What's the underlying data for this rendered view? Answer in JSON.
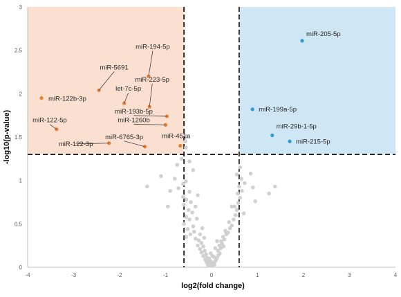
{
  "chart_data": {
    "type": "scatter",
    "title": "",
    "xlabel": "log2(fold change)",
    "ylabel": "-log10(p-value)",
    "xlim": [
      -4,
      4
    ],
    "ylim": [
      0,
      3
    ],
    "x_ticks": [
      "-4",
      "-3",
      "-2",
      "-1",
      "0",
      "1",
      "2",
      "3",
      "4"
    ],
    "y_ticks": [
      "0",
      "0.5",
      "1",
      "1.5",
      "2",
      "2.5",
      "3"
    ],
    "thresholds": {
      "fold_change_low": -0.6,
      "fold_change_high": 0.6,
      "p_value": 1.3
    },
    "colors": {
      "down_region": "#fbe0d1",
      "up_region": "#cfe7f5",
      "down_points": "#ed7d31",
      "up_points": "#2e9bd6",
      "ns_points": "#d0d0d0",
      "threshold_lines": "#000000",
      "axis": "#bfbfbf"
    },
    "series": [
      {
        "group": "down",
        "points": [
          {
            "label": "miR-122b-3p",
            "x": -3.7,
            "y": 1.95
          },
          {
            "label": "miR-5691",
            "x": -2.45,
            "y": 2.04
          },
          {
            "label": "miR-194-5p",
            "x": -1.37,
            "y": 2.2
          },
          {
            "label": "let-7c-5p",
            "x": -1.9,
            "y": 1.89
          },
          {
            "label": "miR-223-5p",
            "x": -1.35,
            "y": 1.85
          },
          {
            "label": "miR-193b-5p",
            "x": -0.97,
            "y": 1.74
          },
          {
            "label": "miR-1260b",
            "x": -1.0,
            "y": 1.64
          },
          {
            "label": "miR-122-5p",
            "x": -3.37,
            "y": 1.59
          },
          {
            "label": "miR-6765-3p",
            "x": -1.45,
            "y": 1.39
          },
          {
            "label": "miR-122-3p",
            "x": -2.23,
            "y": 1.43
          },
          {
            "label": "miR-451a",
            "x": -0.68,
            "y": 1.4
          }
        ]
      },
      {
        "group": "up",
        "points": [
          {
            "label": "miR-205-5p",
            "x": 1.97,
            "y": 2.61
          },
          {
            "label": "miR-199a-5p",
            "x": 0.89,
            "y": 1.82
          },
          {
            "label": "miR-29b-1-5p",
            "x": 1.32,
            "y": 1.52
          },
          {
            "label": "miR-215-5p",
            "x": 1.7,
            "y": 1.45
          }
        ]
      },
      {
        "group": "not-significant",
        "points": [
          {
            "x": -0.55,
            "y": 1.51
          },
          {
            "x": -0.57,
            "y": 1.45
          },
          {
            "x": -0.56,
            "y": 1.38
          },
          {
            "x": -0.65,
            "y": 1.25
          },
          {
            "x": -0.48,
            "y": 1.22
          },
          {
            "x": -0.75,
            "y": 1.18
          },
          {
            "x": -1.1,
            "y": 1.05
          },
          {
            "x": -0.4,
            "y": 1.12
          },
          {
            "x": -0.8,
            "y": 1.02
          },
          {
            "x": -0.56,
            "y": 0.99
          },
          {
            "x": -0.62,
            "y": 0.96
          },
          {
            "x": -1.4,
            "y": 0.93
          },
          {
            "x": -0.72,
            "y": 0.91
          },
          {
            "x": -0.9,
            "y": 0.88
          },
          {
            "x": -0.48,
            "y": 0.87
          },
          {
            "x": -0.3,
            "y": 0.83
          },
          {
            "x": -0.62,
            "y": 0.81
          },
          {
            "x": -0.55,
            "y": 0.78
          },
          {
            "x": -0.45,
            "y": 0.75
          },
          {
            "x": -0.6,
            "y": 0.72
          },
          {
            "x": -0.95,
            "y": 0.7
          },
          {
            "x": -0.35,
            "y": 0.7
          },
          {
            "x": -0.5,
            "y": 0.66
          },
          {
            "x": -0.42,
            "y": 0.63
          },
          {
            "x": -0.55,
            "y": 0.58
          },
          {
            "x": -0.48,
            "y": 0.55
          },
          {
            "x": -0.6,
            "y": 0.5
          },
          {
            "x": -0.4,
            "y": 0.47
          },
          {
            "x": -0.52,
            "y": 0.44
          },
          {
            "x": -0.38,
            "y": 0.41
          },
          {
            "x": -0.46,
            "y": 0.38
          },
          {
            "x": -0.55,
            "y": 0.35
          },
          {
            "x": -0.35,
            "y": 0.33
          },
          {
            "x": -0.2,
            "y": 0.45
          },
          {
            "x": -0.25,
            "y": 0.38
          },
          {
            "x": -0.28,
            "y": 0.31
          },
          {
            "x": -0.22,
            "y": 0.28
          },
          {
            "x": -0.3,
            "y": 0.25
          },
          {
            "x": -0.18,
            "y": 0.24
          },
          {
            "x": -0.25,
            "y": 0.21
          },
          {
            "x": -0.15,
            "y": 0.19
          },
          {
            "x": -0.22,
            "y": 0.17
          },
          {
            "x": -0.12,
            "y": 0.15
          },
          {
            "x": -0.18,
            "y": 0.13
          },
          {
            "x": -0.1,
            "y": 0.11
          },
          {
            "x": -0.14,
            "y": 0.09
          },
          {
            "x": -0.08,
            "y": 0.08
          },
          {
            "x": -0.11,
            "y": 0.06
          },
          {
            "x": -0.06,
            "y": 0.05
          },
          {
            "x": -0.09,
            "y": 0.04
          },
          {
            "x": -0.04,
            "y": 0.03
          },
          {
            "x": -0.07,
            "y": 0.02
          },
          {
            "x": -0.03,
            "y": 0.02
          },
          {
            "x": -0.05,
            "y": 0.1
          },
          {
            "x": -0.02,
            "y": 0.07
          },
          {
            "x": 0.0,
            "y": 0.04
          },
          {
            "x": 0.02,
            "y": 0.02
          },
          {
            "x": 0.04,
            "y": 0.05
          },
          {
            "x": 0.06,
            "y": 0.03
          },
          {
            "x": 0.08,
            "y": 0.07
          },
          {
            "x": 0.1,
            "y": 0.09
          },
          {
            "x": 0.05,
            "y": 0.12
          },
          {
            "x": 0.12,
            "y": 0.11
          },
          {
            "x": 0.15,
            "y": 0.14
          },
          {
            "x": 0.18,
            "y": 0.16
          },
          {
            "x": 0.14,
            "y": 0.19
          },
          {
            "x": 0.2,
            "y": 0.22
          },
          {
            "x": 0.17,
            "y": 0.25
          },
          {
            "x": 0.23,
            "y": 0.27
          },
          {
            "x": 0.26,
            "y": 0.24
          },
          {
            "x": 0.21,
            "y": 0.3
          },
          {
            "x": 0.28,
            "y": 0.32
          },
          {
            "x": 0.25,
            "y": 0.35
          },
          {
            "x": 0.32,
            "y": 0.38
          },
          {
            "x": 0.3,
            "y": 0.42
          },
          {
            "x": 0.36,
            "y": 0.4
          },
          {
            "x": 0.4,
            "y": 0.45
          },
          {
            "x": 0.44,
            "y": 0.48
          },
          {
            "x": 0.38,
            "y": 0.52
          },
          {
            "x": 0.48,
            "y": 0.55
          },
          {
            "x": 0.52,
            "y": 0.6
          },
          {
            "x": 0.55,
            "y": 0.66
          },
          {
            "x": 0.5,
            "y": 0.7
          },
          {
            "x": 0.58,
            "y": 0.74
          },
          {
            "x": 0.62,
            "y": 0.8
          },
          {
            "x": 0.57,
            "y": 0.85
          },
          {
            "x": 0.66,
            "y": 0.88
          },
          {
            "x": 0.6,
            "y": 0.93
          },
          {
            "x": 0.72,
            "y": 0.97
          },
          {
            "x": 0.65,
            "y": 1.02
          },
          {
            "x": 0.55,
            "y": 1.07
          },
          {
            "x": 0.85,
            "y": 1.08
          },
          {
            "x": 0.62,
            "y": 1.15
          },
          {
            "x": 0.9,
            "y": 0.92
          },
          {
            "x": 1.25,
            "y": 0.85
          },
          {
            "x": 1.38,
            "y": 0.93
          },
          {
            "x": 0.95,
            "y": 0.76
          },
          {
            "x": 0.7,
            "y": 0.62
          },
          {
            "x": 0.12,
            "y": 0.3
          },
          {
            "x": 0.08,
            "y": 0.22
          },
          {
            "x": -0.02,
            "y": 0.16
          },
          {
            "x": 0.02,
            "y": 0.13
          },
          {
            "x": -0.16,
            "y": 0.34
          },
          {
            "x": -0.32,
            "y": 0.56
          },
          {
            "x": 0.44,
            "y": 0.7
          }
        ]
      }
    ]
  }
}
